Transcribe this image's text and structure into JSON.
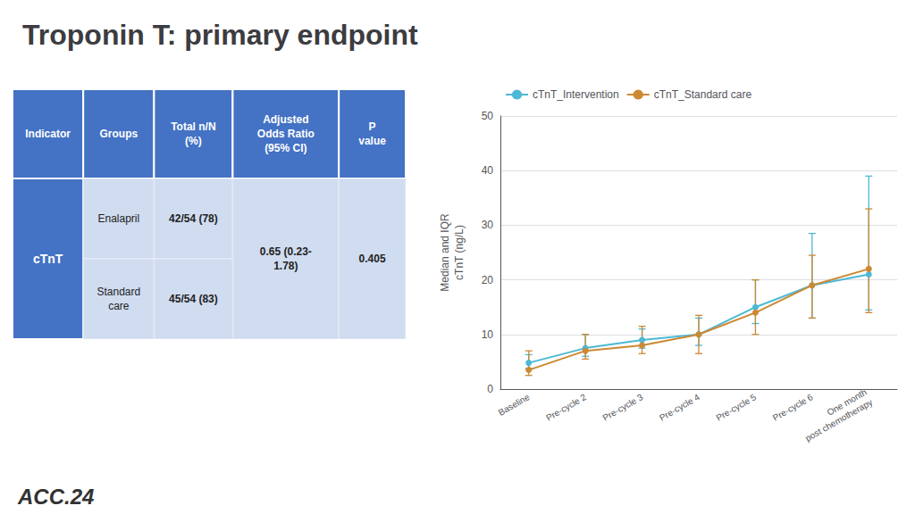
{
  "chart_data": [
    {
      "type": "table",
      "columns": [
        "Indicator",
        "Groups",
        "Total n/N\n(%)",
        "Adjusted\nOdds Ratio\n(95% CI)",
        "P\nvalue"
      ],
      "rows": [
        [
          "cTnT",
          "Enalapril",
          "42/54 (78)",
          "0.65 (0.23-\n1.78)",
          "0.405"
        ],
        [
          null,
          "Standard\ncare",
          "45/54 (83)",
          null,
          null
        ]
      ],
      "color": "#4472c4"
    },
    {
      "type": "line",
      "title": "Troponin T: primary endpoint",
      "categories": [
        "Baseline",
        "Pre-cycle 2",
        "Pre-cycle 3",
        "Pre-cycle 4",
        "Pre-cycle 5",
        "Pre-cycle 6",
        "One month\npost chemotherapy"
      ],
      "series": [
        {
          "name": "cTnT_Intervention",
          "color": "#4db8d4",
          "marker": "circle",
          "values": [
            4.8,
            7.5,
            9.0,
            10.0,
            15.0,
            19.0,
            21.0
          ],
          "yerr_low": [
            1.0,
            1.5,
            1.5,
            2.0,
            3.0,
            6.0,
            6.5
          ],
          "yerr_high": [
            1.5,
            2.5,
            2.0,
            3.0,
            5.0,
            9.5,
            18.0
          ]
        },
        {
          "name": "cTnT_Standard care",
          "color": "#cc8833",
          "marker": "circle",
          "values": [
            3.5,
            7.0,
            8.0,
            10.0,
            14.0,
            19.0,
            22.0
          ],
          "yerr_low": [
            1.0,
            1.5,
            1.5,
            3.5,
            4.0,
            6.0,
            8.0
          ],
          "yerr_high": [
            3.5,
            3.0,
            3.5,
            3.5,
            6.0,
            5.5,
            11.0
          ]
        }
      ],
      "ylabel": "Median and IQR\ncTnT (ng/L)",
      "ylim": [
        0,
        50
      ],
      "yticks": [
        0,
        10,
        20,
        30,
        40,
        50
      ],
      "grid": true,
      "legend": "upper left",
      "annotations": [
        "ACC.24"
      ]
    }
  ]
}
